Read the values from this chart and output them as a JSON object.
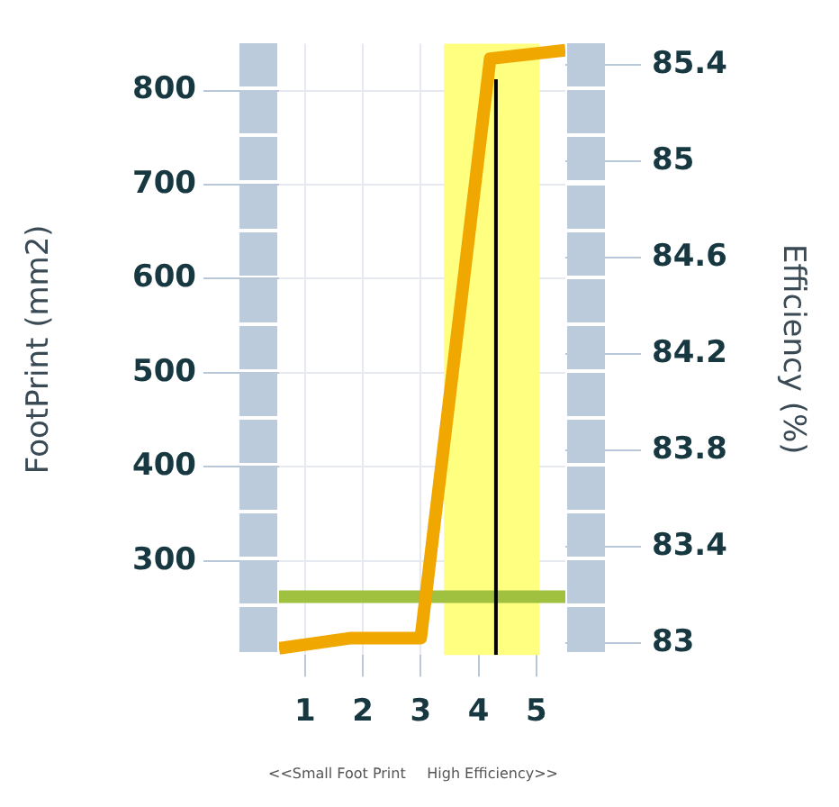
{
  "chart_data": {
    "type": "line",
    "xlabel": null,
    "ylabel": "FootPrint (mm2)",
    "y2label": "Efficiency (%)",
    "x": [
      0.55,
      1.8,
      3.0,
      4.2,
      5.5
    ],
    "series": [
      {
        "color": "#f0a800",
        "values": [
          207,
          218,
          218,
          834,
          843
        ]
      },
      {
        "type": "line",
        "color": "#000000",
        "x": [
          4.3,
          4.3
        ],
        "values": [
          200,
          812
        ]
      }
    ],
    "xlim": [
      0.55,
      5.5
    ],
    "xticks": [
      1,
      2,
      3,
      4,
      5
    ],
    "ylim": [
      200,
      850
    ],
    "yticks": [
      300,
      400,
      500,
      600,
      700,
      800
    ],
    "y2lim": [
      82.95,
      85.49
    ],
    "y2ticks": [
      83,
      83.4,
      83.8,
      84.2,
      84.6,
      85,
      85.4
    ],
    "ref_lines": [
      {
        "axis": "y",
        "value": 262,
        "color": "#a0c040"
      }
    ],
    "bands": [
      {
        "axis": "x",
        "from": 3.4,
        "to": 5.05,
        "color": "#ffff80"
      }
    ],
    "annotations": [
      "<<Small Foot Print",
      "High Efficiency>>"
    ],
    "grid": true,
    "legend": false,
    "marker": "none",
    "line_style": "solid"
  }
}
